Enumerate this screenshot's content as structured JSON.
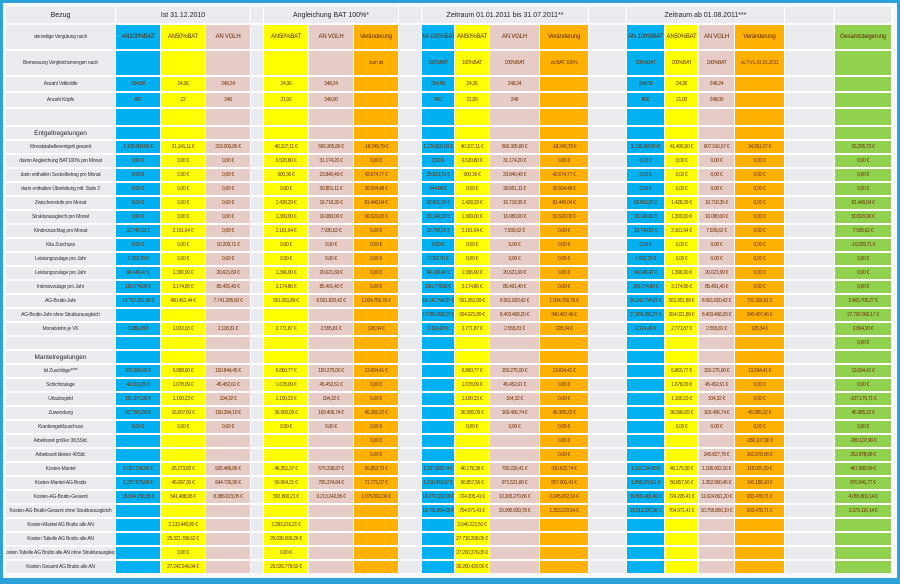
{
  "palette": {
    "border_blue": "#2ba3d8",
    "cyan": "#00b0f0",
    "yellow": "#ffff00",
    "rose": "#e7cbc6",
    "orange": "#ffb000",
    "green": "#92d050",
    "grid_gray": "#e9ebef"
  },
  "header": {
    "corner": "Bezug",
    "rows": {
      "verguetung": "derzeitige Vergütung nach",
      "bemessung": "Bemessung Vergleichsmengen nach",
      "vollkraefte": "Anzahl Vollkräfte",
      "koepfe": "Anzahl Köpfe"
    },
    "groups": [
      {
        "title": "Ist 31.12.2010",
        "columns": [
          "AN100%BAT",
          "AN50%BAT",
          "AN VGLH"
        ],
        "colors": [
          "cyan",
          "yellow",
          "rose"
        ],
        "bemessung": [
          "",
          "",
          ""
        ],
        "vollkraefte": [
          "694,08",
          "24,36",
          "248,24"
        ],
        "koepfe": [
          "800",
          "22",
          "248"
        ]
      },
      {
        "title": "Angleichung BAT 100%*",
        "columns": [
          "AN50%BAT",
          "AN VGLH",
          "Veränderung"
        ],
        "colors": [
          "yellow",
          "rose",
          "orange"
        ],
        "bemessung": [
          "",
          "",
          "zum Ist"
        ],
        "vollkraefte": [
          "24,36",
          "248,24",
          ""
        ],
        "koepfe": [
          "21,00",
          "248,00",
          ""
        ]
      },
      {
        "title": "Zeitraum 01.01.2011 bis 31.07.2011**",
        "columns": [
          "AN 100%BAT",
          "AN50%BAT",
          "AN VGLH",
          "Veränderung"
        ],
        "colors": [
          "cyan",
          "yellow",
          "rose",
          "orange"
        ],
        "bemessung": [
          "100%BAT",
          "100%BAT",
          "100%BAT",
          "zu BAT 100%"
        ],
        "vollkraefte": [
          "694,08",
          "24,36",
          "248,24",
          ""
        ],
        "koepfe": [
          "800",
          "21,00",
          "248",
          ""
        ]
      },
      {
        "title": "Zeitraum ab 01.08.2011***",
        "columns": [
          "AN 100%BAT",
          "AN50%BAT",
          "AN VGLH",
          "Veränderung"
        ],
        "colors": [
          "cyan",
          "yellow",
          "rose",
          "orange"
        ],
        "bemessung": [
          "100%BAT",
          "100%BAT",
          "100%BAT",
          "zu TV-L 01.01.2011"
        ],
        "vollkraefte": [
          "694,08",
          "24,36",
          "248,24",
          ""
        ],
        "koepfe": [
          "800",
          "21,00",
          "248,00",
          ""
        ]
      }
    ],
    "total_column": {
      "title": "Gesamtsteigerung",
      "color": "green"
    }
  },
  "body": {
    "rows": [
      {
        "type": "spacer",
        "label": "",
        "g1": [
          "",
          "",
          ""
        ],
        "g2": [
          "",
          "",
          ""
        ],
        "g3": [
          "",
          "",
          "",
          ""
        ],
        "g4": [
          "",
          "",
          "",
          ""
        ],
        "total": ""
      },
      {
        "type": "section",
        "label": "Entgeltregelungen",
        "g1": [
          "",
          "",
          ""
        ],
        "g2": [
          "",
          "",
          ""
        ],
        "g3": [
          "",
          "",
          "",
          ""
        ],
        "g4": [
          "",
          "",
          "",
          ""
        ],
        "total": ""
      },
      {
        "type": "data",
        "label": "Monatstabellenentgelt  gesamt",
        "g1": [
          "1.109.300,86 €",
          "31.141,11 €",
          "319.000,85 €"
        ],
        "g2": [
          "40.107,11 €",
          "566.305,86 €",
          "-18.349,79 €"
        ],
        "g3": [
          "1.070.831,03 €",
          "40.107,11 €",
          "566.305,86 €",
          "-18.349,79 €"
        ],
        "g4": [
          "1.105.960,50 €",
          "41.406,90 €",
          "607.916,07 €",
          "34.051,07 €"
        ],
        "total": "93.295,73 €"
      },
      {
        "type": "data",
        "label": "davon Angleichung  BAT100%  pro Monat",
        "g1": [
          "0,00 €",
          "0,00 €",
          "0,00 €"
        ],
        "g2": [
          "6.520,80 €",
          "31.174,20 €",
          "0,00 €"
        ],
        "g3": [
          "0,00 €",
          "6.520,80 €",
          "31.174,20 €",
          "0,00 €"
        ],
        "g4": [
          "0,00 €",
          "0,00 €",
          "0,00 €",
          "0,00 €"
        ],
        "total": "0,00 €"
      },
      {
        "type": "data",
        "label": "darin enthalten  Sockelbetrag pro Monat",
        "g1": [
          "0,00 €",
          "0,00 €",
          "0,00 €"
        ],
        "g2": [
          "900,36 €",
          "23.840,49 €",
          "42.674,77 €"
        ],
        "g3": [
          "28.813,73 €",
          "900,36 €",
          "23.840,49 €",
          "42.674,77 €"
        ],
        "g4": [
          "0,00 €",
          "0,00 €",
          "0,00 €",
          "0,00 €"
        ],
        "total": "0,00 €"
      },
      {
        "type": "data",
        "label": "darin enthalten  Überleitung  mtl. Stufe 2",
        "g1": [
          "0,00 €",
          "0,00 €",
          "0,00 €"
        ],
        "g2": [
          "0,00 €",
          "30.851,11 €",
          "30.594,48 €"
        ],
        "g3": [
          "244,86 €",
          "0,00 €",
          "30.851,11 €",
          "30.594,48 €"
        ],
        "g4": [
          "0,00 €",
          "0,00 €",
          "0,00 €",
          "0,00 €"
        ],
        "total": "0,00 €"
      },
      {
        "type": "data",
        "label": "Zwischenstufe  pro Monat",
        "g1": [
          "0,00 €",
          "0,00 €",
          "0,00 €"
        ],
        "g2": [
          "1.428,29 €",
          "16.718,35 €",
          "81.440,04 €"
        ],
        "g3": [
          "62.601,00 €",
          "1.428,29 €",
          "16.718,35 €",
          "81.440,04 €"
        ],
        "g4": [
          "62.601,00 €",
          "1.428,29 €",
          "16.718,35 €",
          "0,00 €"
        ],
        "total": "81.440,04 €"
      },
      {
        "type": "data",
        "label": "Strukturausgleich  pro Monat",
        "g1": [
          "0,00 €",
          "0,00 €",
          "0,00 €"
        ],
        "g2": [
          "1.300,00 €",
          "16.080,00 €",
          "50.520,00 €"
        ],
        "g3": [
          "33.140,00 €",
          "1.300,00 €",
          "16.080,00 €",
          "50.520,00 €"
        ],
        "g4": [
          "33.140,00 €",
          "1.300,00 €",
          "16.080,00 €",
          "0,00 €"
        ],
        "total": "50.520,00 €"
      },
      {
        "type": "data",
        "label": "Kinderzuschlag  pro Monat",
        "g1": [
          "10.740,53 €",
          "2.161,64 €",
          "0,00 €"
        ],
        "g2": [
          "2.161,64 €",
          "7.935,62 €",
          "0,00 €"
        ],
        "g3": [
          "10.740,53 €",
          "2.161,64 €",
          "7.935,62 €",
          "0,00 €"
        ],
        "g4": [
          "10.740,53 €",
          "2.161,64 €",
          "7.935,62 €",
          "0,00 €"
        ],
        "total": "7.935,62 €"
      },
      {
        "type": "data",
        "label": "Kita Zuschuss",
        "g1": [
          "0,00 €",
          "0,00 €",
          "10.209,71 €"
        ],
        "g2": [
          "0,00 €",
          "0,00 €",
          "0,00 €"
        ],
        "g3": [
          "0,00 €",
          "0,00 €",
          "0,00 €",
          "0,00 €"
        ],
        "g4": [
          "0,00 €",
          "0,00 €",
          "0,00 €",
          "0,00 €"
        ],
        "total": "-10.209,71 €"
      },
      {
        "type": "data",
        "label": "Leistungszulage  pro Jahr",
        "g1": [
          "7.062,70 €",
          "0,00 €",
          "0,00 €"
        ],
        "g2": [
          "0,00 €",
          "0,00 €",
          "0,00 €"
        ],
        "g3": [
          "7.062,70 €",
          "0,00 €",
          "0,00 €",
          "0,00 €"
        ],
        "g4": [
          "7.062,70 €",
          "0,00 €",
          "0,00 €",
          "0,00 €"
        ],
        "total": "0,00 €"
      },
      {
        "type": "data",
        "label": "Leistungszulage  pro Jahr",
        "g1": [
          "94.146,47 €",
          "1.396,90 €",
          "20.621,69 €"
        ],
        "g2": [
          "1.396,90 €",
          "20.621,69 €",
          "0,00 €"
        ],
        "g3": [
          "94.146,47 €",
          "1.396,90 €",
          "20.621,69 €",
          "0,00 €"
        ],
        "g4": [
          "94.146,47 €",
          "1.396,90 €",
          "20.621,69 €",
          "0,00 €"
        ],
        "total": "0,00 €"
      },
      {
        "type": "data",
        "label": "Intensivzulage  pro Jahr",
        "g1": [
          "160.774,80 €",
          "3.174,86 €",
          "85.491,40 €"
        ],
        "g2": [
          "3.174,86 €",
          "85.491,40 €",
          "0,00 €"
        ],
        "g3": [
          "160.774,80 €",
          "3.174,86 €",
          "85.491,40 €",
          "0,00 €"
        ],
        "g4": [
          "160.774,80 €",
          "3.174,86 €",
          "85.491,40 €",
          "0,00 €"
        ],
        "total": "0,00 €"
      },
      {
        "type": "data",
        "label": "AG-Brutto-Jahr",
        "g1": [
          "16.767.051,06 €",
          "460.451,44 €",
          "7.741.295,60 €"
        ],
        "g2": [
          "561.951,89 €",
          "8.561.820,42 €",
          "1.004.756,76 €"
        ],
        "g3": [
          "16.141.794,87 €",
          "561.951,89 €",
          "8.561.820,42 €",
          "1.004.756,76 €"
        ],
        "g4": [
          "16.141.794,87 €",
          "561.951,89 €",
          "8.561.820,42 €",
          "791.302,61 €"
        ],
        "total": "2.465.705,27 €"
      },
      {
        "type": "data",
        "label": "AG-Brutto-Jahr  ohne Strukturausgleich",
        "g1": [
          "",
          "",
          ""
        ],
        "g2": [
          "",
          "",
          ""
        ],
        "g3": [
          "17.055.350,27 €",
          "654.021,89 €",
          "8.403.468,20 €",
          "340.407,46 €"
        ],
        "g4": [
          "17.055.350,27 €",
          "654.021,89 €",
          "8.403.468,20 €",
          "340.407,46 €"
        ],
        "total": "27.702.066,17 €"
      },
      {
        "type": "data",
        "label": "Monatslohn   je VK",
        "g1": [
          "1.686,28 €",
          "1.033,03 €",
          "2.118,31 €"
        ],
        "g2": [
          "2.771,87 €",
          "2.555,81 €",
          "128,34 €"
        ],
        "g3": [
          "2.124,20 €",
          "2.771,87 €",
          "2.555,81 €",
          "128,34 €"
        ],
        "g4": [
          "2.124,20 €",
          "2.771,87 €",
          "2.555,81 €",
          "128,34 €"
        ],
        "total": "2.894,20 €"
      },
      {
        "type": "data",
        "label": "",
        "g1": [
          "",
          "",
          ""
        ],
        "g2": [
          "",
          "",
          ""
        ],
        "g3": [
          "",
          "",
          "",
          ""
        ],
        "g4": [
          "",
          "",
          "",
          ""
        ],
        "total": "0,00 €"
      },
      {
        "type": "section",
        "label": "Mantelregelungen",
        "g1": [
          "",
          "",
          ""
        ],
        "g2": [
          "",
          "",
          ""
        ],
        "g3": [
          "",
          "",
          "",
          ""
        ],
        "g4": [
          "",
          "",
          "",
          ""
        ],
        "total": ""
      },
      {
        "type": "data",
        "label": "Ist Zuschläge****",
        "g1": [
          "270.300,60 €",
          "6.088,90 €",
          "150.844,45 €"
        ],
        "g2": [
          "6.860,77 €",
          "150.275,00 €",
          "13.694,41 €"
        ],
        "g3": [
          "",
          "6.860,77 €",
          "150.275,00 €",
          "13.694,41 €"
        ],
        "g4": [
          "",
          "6.860,77 €",
          "150.275,00 €",
          "13.694,41 €"
        ],
        "total": "13.694,41 €"
      },
      {
        "type": "data",
        "label": "Schichtzulage",
        "g1": [
          "41.021,85 €",
          "1.678,09 €",
          "45.452,61 €"
        ],
        "g2": [
          "1.678,09 €",
          "45.452,61 €",
          "0,00 €"
        ],
        "g3": [
          "",
          "1.678,09 €",
          "45.452,61 €",
          "0,00 €"
        ],
        "g4": [
          "",
          "1.678,09 €",
          "45.452,61 €",
          "0,00 €"
        ],
        "total": "0,00 €"
      },
      {
        "type": "data",
        "label": "Urlaubsgeld",
        "g1": [
          "101.971,96 €",
          "1.100,23 €",
          "104,32 €"
        ],
        "g2": [
          "1.100,23 €",
          "104,32 €",
          "0,00 €"
        ],
        "g3": [
          "",
          "1.100,23 €",
          "104,32 €",
          "0,00 €"
        ],
        "g4": [
          "",
          "1.100,23 €",
          "104,32 €",
          "0,00 €"
        ],
        "total": "-107.175,71 €"
      },
      {
        "type": "data",
        "label": "Zuwendung",
        "g1": [
          "637.501,50 €",
          "16.507,60 €",
          "150.394,10 €"
        ],
        "g2": [
          "36.580,09 €",
          "169.406,74 €",
          "45.385,22 €"
        ],
        "g3": [
          "",
          "36.580,09 €",
          "169.406,74 €",
          "45.385,22 €"
        ],
        "g4": [
          "",
          "36.580,09 €",
          "169.406,74 €",
          "45.385,22 €"
        ],
        "total": "45.385,22 €"
      },
      {
        "type": "data",
        "label": "Krankengeldzuschuss",
        "g1": [
          "0,00 €",
          "0,00 €",
          "0,00 €"
        ],
        "g2": [
          "0,00 €",
          "0,00 €",
          "0,00 €"
        ],
        "g3": [
          "",
          "0,00 €",
          "0,00 €",
          "0,00 €"
        ],
        "g4": [
          "",
          "0,00 €",
          "0,00 €",
          "0,00 €"
        ],
        "total": "0,00 €"
      },
      {
        "type": "data",
        "label": "Arbeitszeit  größer  38,5Std.",
        "g1": [
          "",
          "",
          ""
        ],
        "g2": [
          "",
          "",
          "0,00 €"
        ],
        "g3": [
          "",
          "",
          "",
          "0,00 €"
        ],
        "g4": [
          "",
          "",
          "",
          "-280.107,90 €"
        ],
        "total": "-280.107,90 €"
      },
      {
        "type": "data",
        "label": "Arbeitszeit  kleiner  40Std.",
        "g1": [
          "",
          "",
          ""
        ],
        "g2": [
          "",
          "",
          "0,00 €"
        ],
        "g3": [
          "",
          "",
          "",
          "0,00 €"
        ],
        "g4": [
          "",
          "",
          "245.827,78 €",
          "262.878,06 €"
        ],
        "total": "262.878,06 €"
      },
      {
        "type": "data",
        "label": "Kosten-Mantel",
        "g1": [
          "1.051.190,95 €",
          "26.273,82 €",
          "526.486,86 €"
        ],
        "g2": [
          "46.351,37 €",
          "576.338,87 €",
          "56.853,73 €"
        ],
        "g3": [
          "1.107.083,74 €",
          "46.179,38 €",
          "790.226,41 €",
          "330.622,74 €"
        ],
        "g4": [
          "1.113.094,80 €",
          "46.179,38 €",
          "1.106.902,16 €",
          "118.029,29 €"
        ],
        "total": "467.680,06 €"
      },
      {
        "type": "data",
        "label": "Kosten-Mantel-AG-Brutto",
        "g1": [
          "1.327.879,09 €",
          "46.097,30 €",
          "644.726,95 €"
        ],
        "g2": [
          "56.964,31 €",
          "705.374,84 €",
          "71.771,07 €"
        ],
        "g3": [
          "1.616.941,57 €",
          "56.857,56 €",
          "971.521,86 €",
          "857.001,41 €"
        ],
        "g4": [
          "1.056.970,61 €",
          "56.857,56 €",
          "1.352.960,46 €",
          "141.188,10 €"
        ],
        "total": "870.941,77 €"
      },
      {
        "type": "data",
        "label": "Kosten-AG-Brutto-Gesamt",
        "g1": [
          "18.014.730,35 €",
          "541.488,95 €",
          "8.386.023,05 €"
        ],
        "g2": [
          "591.800,21 €",
          "9.213.242,95 €",
          "1.076.561,00 €"
        ],
        "g3": [
          "18.272.132,60 €",
          "724.205,41 €",
          "10.265.270,06 €",
          "2.045.652,16 €"
        ],
        "g4": [
          "19.501.401,46 €",
          "724.205,41 €",
          "11.024.861,20 €",
          "933.478,71 €"
        ],
        "total": "4.055.801,14 €"
      },
      {
        "type": "data",
        "label": "Kosten-AG-Brutto-Gesamt   ohne Strukturausgleich",
        "g1": [
          "",
          "",
          ""
        ],
        "g2": [
          "",
          "",
          ""
        ],
        "g3": [
          "19.766.894,05 €",
          "704.971,41 €",
          "10.095.930,78 €",
          "1.353.120,54 €"
        ],
        "g4": [
          "19.013.220,86 €",
          "704.971,41 €",
          "10.755.850,10 €",
          "933.478,71 €"
        ],
        "total": "3.373.116,14 €"
      },
      {
        "type": "data",
        "label": "Kosten-Mantel  AG Brutto  alle AN",
        "g1": [
          "",
          "2.133.445,85 €",
          ""
        ],
        "g2": [
          "2.283.216,21 €",
          "",
          ""
        ],
        "g3": [
          "",
          "2.646.221,50 €",
          "",
          ""
        ],
        "g4": [
          "",
          "",
          "",
          ""
        ],
        "total": ""
      },
      {
        "type": "data",
        "label": "Kosten  Tabelle  AG Brutto  alle AN",
        "g1": [
          "",
          "25.321.786,62 €",
          ""
        ],
        "g2": [
          "26.036.556,26 €",
          "",
          ""
        ],
        "g3": [
          "",
          "27.716.208,05 €",
          "",
          ""
        ],
        "g4": [
          "",
          "",
          "",
          ""
        ],
        "total": ""
      },
      {
        "type": "data",
        "label": "Kosten  Tabelle  AG Brutto alle  AN ohne Strukturausgleich",
        "g1": [
          "",
          "0,00 €",
          ""
        ],
        "g2": [
          "0,00 €",
          "",
          ""
        ],
        "g3": [
          "",
          "27.260.376,05 €",
          "",
          ""
        ],
        "g4": [
          "",
          "",
          "",
          ""
        ],
        "total": ""
      },
      {
        "type": "data",
        "label": "Kosten  Gesamt AG  Brutto  alle AN",
        "g1": [
          "",
          "27.242.246,04 €",
          ""
        ],
        "g2": [
          "26.026.778,60 €",
          "",
          ""
        ],
        "g3": [
          "",
          "30.260.420,06 €",
          "",
          ""
        ],
        "g4": [
          "",
          "",
          "",
          ""
        ],
        "total": ""
      }
    ]
  }
}
